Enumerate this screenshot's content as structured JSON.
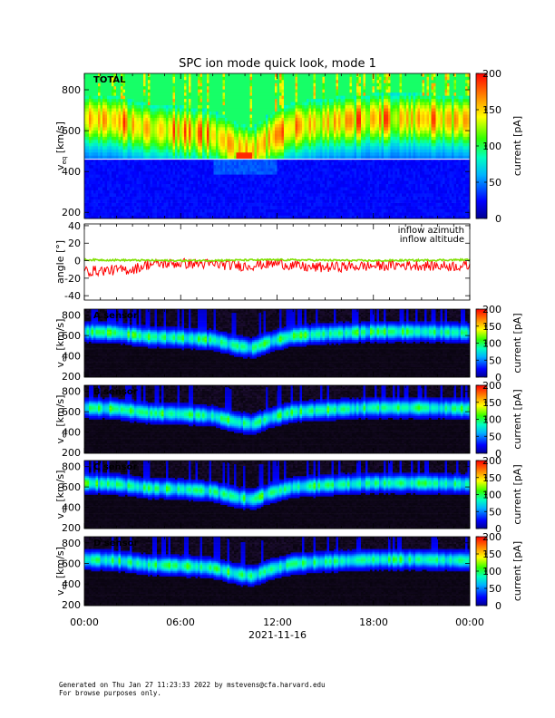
{
  "title": "SPC ion mode quick look, mode 1",
  "time_axis": {
    "ticks": [
      "00:00",
      "06:00",
      "12:00",
      "18:00",
      "00:00"
    ],
    "date": "2021-11-16"
  },
  "colorbar": {
    "label": "current [pA]"
  },
  "footer": {
    "line1": "Generated on Thu Jan 27 11:23:33 2022 by mstevens@cfa.harvard.edu",
    "line2": "For browse purposes only."
  },
  "colors": {
    "azimuth": "#ff0000",
    "altitude": "#7fe000",
    "separator": "#ffffff"
  },
  "chart_data": [
    {
      "type": "heatmap",
      "panel_label": "TOTAL",
      "ylabel": "v",
      "ylabel_sub": "eq",
      "ylabel_unit": "[km/s]",
      "ylim": [
        170,
        880
      ],
      "yticks": [
        200,
        400,
        600,
        800
      ],
      "ytick_labels": [
        "200",
        "400",
        "600",
        "800"
      ],
      "xlim_hours": [
        0,
        24
      ],
      "colorbar_range": [
        0,
        200
      ],
      "colorbar_ticks": [
        0,
        50,
        100,
        150,
        200
      ],
      "colorbar_labels": [
        "0",
        "50",
        "100",
        "150",
        "200"
      ],
      "colorbar_label": "current [pA]",
      "separator_velocity": 460,
      "peak_velocity_by_hour": [
        [
          0,
          660
        ],
        [
          2,
          650
        ],
        [
          3,
          630
        ],
        [
          4,
          610
        ],
        [
          6,
          600
        ],
        [
          8,
          580
        ],
        [
          9.5,
          520
        ],
        [
          10.5,
          500
        ],
        [
          11.5,
          560
        ],
        [
          13,
          620
        ],
        [
          15,
          640
        ],
        [
          18,
          660
        ],
        [
          21,
          660
        ],
        [
          24,
          650
        ]
      ]
    },
    {
      "type": "line",
      "ylabel": "angle [°]",
      "ylim": [
        -45,
        42
      ],
      "yticks": [
        -40,
        -20,
        0,
        20,
        40
      ],
      "ytick_labels": [
        "-40",
        "-20",
        "0",
        "20",
        "40"
      ],
      "xlim_hours": [
        0,
        24
      ],
      "series": [
        {
          "name": "inflow azimuth",
          "mean_by_hour": [
            [
              0,
              -12
            ],
            [
              3,
              -10
            ],
            [
              4,
              -4
            ],
            [
              6,
              -3
            ],
            [
              8,
              -4
            ],
            [
              10,
              -6
            ],
            [
              12,
              -3
            ],
            [
              14,
              -8
            ],
            [
              16,
              -7
            ],
            [
              18,
              -6
            ],
            [
              20,
              -5
            ],
            [
              22,
              -6
            ],
            [
              24,
              -6
            ]
          ]
        },
        {
          "name": "inflow altitude",
          "mean_by_hour": [
            [
              0,
              1
            ],
            [
              6,
              0
            ],
            [
              12,
              1
            ],
            [
              18,
              0
            ],
            [
              24,
              1
            ]
          ]
        }
      ]
    },
    {
      "type": "heatmap",
      "panel_label": "A sensor",
      "ylabel": "v",
      "ylabel_sub": "eq",
      "ylabel_unit": "[km/s]",
      "ylim": [
        190,
        860
      ],
      "yticks": [
        200,
        400,
        600,
        800
      ],
      "ytick_labels": [
        "200",
        "400",
        "600",
        "800"
      ],
      "colorbar_range": [
        0,
        200
      ],
      "colorbar_ticks": [
        0,
        50,
        100,
        150,
        200
      ],
      "colorbar_labels": [
        "0",
        "50",
        "100",
        "150",
        "200"
      ],
      "colorbar_label": "current [pA]"
    },
    {
      "type": "heatmap",
      "panel_label": "B sensor",
      "ylabel": "v",
      "ylabel_sub": "eq",
      "ylabel_unit": "[km/s]",
      "ylim": [
        190,
        860
      ],
      "yticks": [
        200,
        400,
        600,
        800
      ],
      "ytick_labels": [
        "200",
        "400",
        "600",
        "800"
      ],
      "colorbar_range": [
        0,
        200
      ],
      "colorbar_ticks": [
        0,
        50,
        100,
        150,
        200
      ],
      "colorbar_labels": [
        "0",
        "50",
        "100",
        "150",
        "200"
      ],
      "colorbar_label": "current [pA]"
    },
    {
      "type": "heatmap",
      "panel_label": "C sensor",
      "ylabel": "v",
      "ylabel_sub": "eq",
      "ylabel_unit": "[km/s]",
      "ylim": [
        190,
        860
      ],
      "yticks": [
        200,
        400,
        600,
        800
      ],
      "ytick_labels": [
        "200",
        "400",
        "600",
        "800"
      ],
      "colorbar_range": [
        0,
        200
      ],
      "colorbar_ticks": [
        0,
        50,
        100,
        150,
        200
      ],
      "colorbar_labels": [
        "0",
        "50",
        "100",
        "150",
        "200"
      ],
      "colorbar_label": "current [pA]"
    },
    {
      "type": "heatmap",
      "panel_label": "D sensor",
      "ylabel": "v",
      "ylabel_sub": "eq",
      "ylabel_unit": "[km/s]",
      "ylim": [
        190,
        860
      ],
      "yticks": [
        200,
        400,
        600,
        800
      ],
      "ytick_labels": [
        "200",
        "400",
        "600",
        "800"
      ],
      "colorbar_range": [
        0,
        200
      ],
      "colorbar_ticks": [
        0,
        50,
        100,
        150,
        200
      ],
      "colorbar_labels": [
        "0",
        "50",
        "100",
        "150",
        "200"
      ],
      "colorbar_label": "current [pA]"
    }
  ]
}
